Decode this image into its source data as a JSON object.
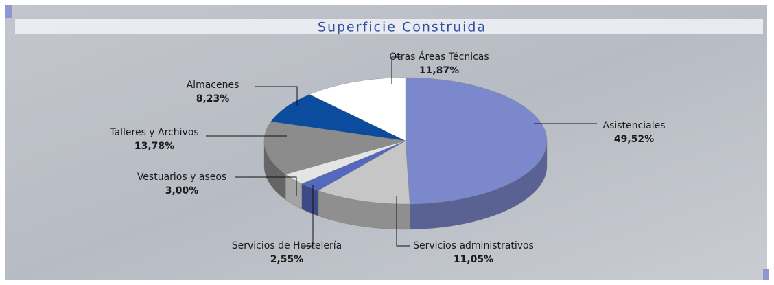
{
  "chart_data": {
    "type": "pie",
    "title": "Superficie Construida",
    "categories": [
      "Asistenciales",
      "Servicios administrativos",
      "Servicios de Hostelería",
      "Vestuarios y aseos",
      "Talleres y Archivos",
      "Almacenes",
      "Otras Áreas Técnicas"
    ],
    "values": [
      49.52,
      11.05,
      2.55,
      3.0,
      13.78,
      8.23,
      11.87
    ],
    "value_labels": [
      "49,52%",
      "11,05%",
      "2,55%",
      "3,00%",
      "13,78%",
      "8,23%",
      "11,87%"
    ],
    "colors": [
      "#7b88cb",
      "#c6c6c6",
      "#5468bd",
      "#e4e4e4",
      "#8c8c8c",
      "#0b4c9e",
      "#ffffff"
    ]
  }
}
